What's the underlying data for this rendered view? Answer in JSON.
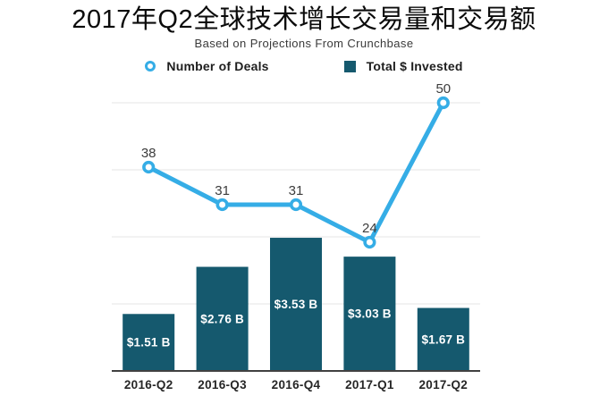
{
  "title": "2017年Q2全球技术增长交易量和交易额",
  "subtitle": "Based on Projections From Crunchbase",
  "legend": {
    "items": [
      {
        "label": "Number of Deals",
        "marker": "hollow-circle",
        "color": "#35ADE6"
      },
      {
        "label": "Total $ Invested",
        "marker": "square",
        "color": "#15596E"
      }
    ]
  },
  "colors": {
    "line": "#35ADE6",
    "bar": "#15596E",
    "grid": "#e4e4e4",
    "axis": "#414141",
    "bar_label": "#ffffff",
    "point_label": "#3c3c3c",
    "x_label": "#262626"
  },
  "chart_data": {
    "type": "bar",
    "subtype": "bar-line-combo",
    "title": "2017年Q2全球技术增长交易量和交易额",
    "subtitle": "Based on Projections From Crunchbase",
    "categories": [
      "2016-Q2",
      "2016-Q3",
      "2016-Q4",
      "2017-Q1",
      "2017-Q2"
    ],
    "series": [
      {
        "name": "Number of Deals",
        "type": "line",
        "values": [
          38,
          31,
          31,
          24,
          50
        ],
        "labels": [
          "38",
          "31",
          "31",
          "24",
          "50"
        ],
        "axis_range": [
          0,
          50
        ]
      },
      {
        "name": "Total $ Invested",
        "type": "bar",
        "values": [
          1.51,
          2.76,
          3.53,
          3.03,
          1.67
        ],
        "labels": [
          "$1.51 B",
          "$2.76 B",
          "$3.53 B",
          "$3.03 B",
          "$1.67 B"
        ],
        "unit": "billion USD"
      }
    ],
    "grid": true,
    "gridlines": "4 horizontal unlabeled lines, deals values 50 / 37.5 / 25 / 12.5",
    "axes": "no visible y-axis tick labels; values shown as data labels",
    "legend_position": "top"
  }
}
